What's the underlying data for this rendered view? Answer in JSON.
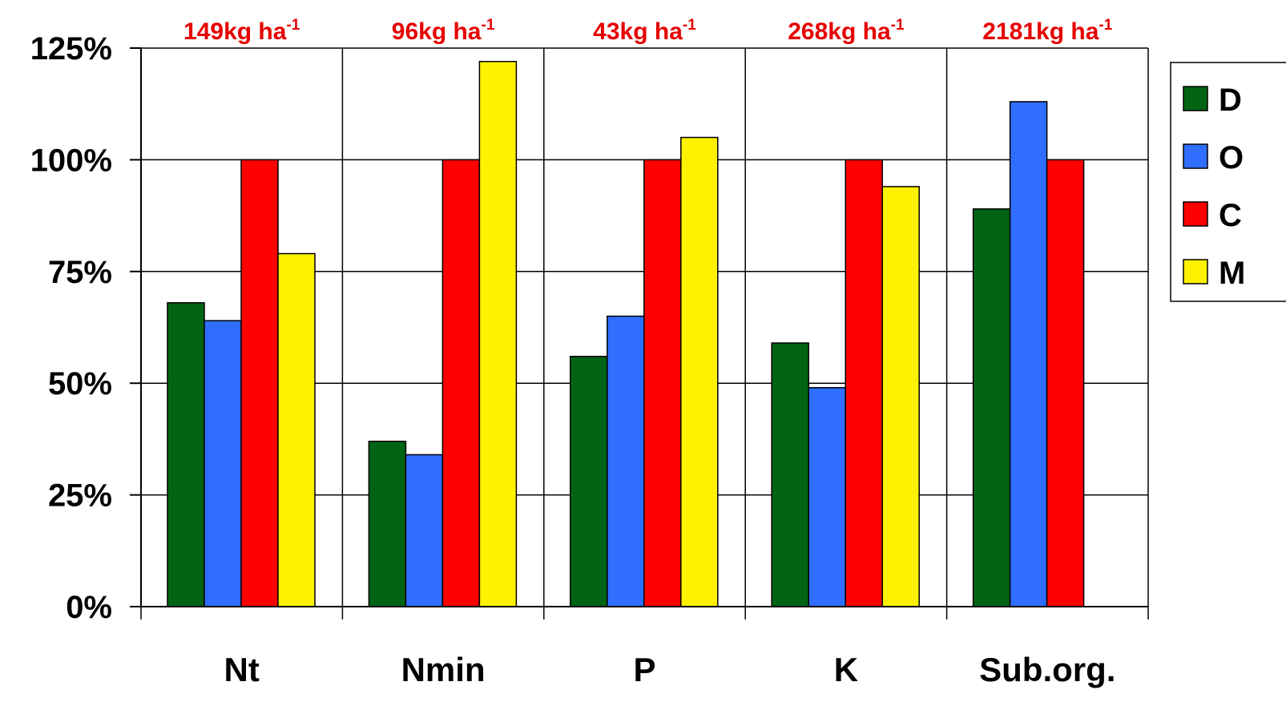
{
  "chart_data": {
    "type": "bar",
    "categories": [
      "Nt",
      "Nmin",
      "P",
      "K",
      "Sub.org."
    ],
    "annotations": [
      {
        "text": "149kg ha",
        "sup": "-1"
      },
      {
        "text": "96kg ha",
        "sup": "-1"
      },
      {
        "text": "43kg ha",
        "sup": "-1"
      },
      {
        "text": "268kg ha",
        "sup": "-1"
      },
      {
        "text": "2181kg ha",
        "sup": "-1"
      }
    ],
    "series": [
      {
        "name": "D",
        "color": "#006414",
        "values": [
          68,
          37,
          56,
          59,
          89
        ]
      },
      {
        "name": "O",
        "color": "#2f6eff",
        "values": [
          64,
          34,
          65,
          49,
          113
        ]
      },
      {
        "name": "C",
        "color": "#ff0000",
        "values": [
          100,
          100,
          100,
          100,
          100
        ]
      },
      {
        "name": "M",
        "color": "#fff200",
        "values": [
          79,
          122,
          105,
          94,
          null
        ]
      }
    ],
    "yticks": [
      "0%",
      "25%",
      "50%",
      "75%",
      "100%",
      "125%"
    ],
    "ylim": [
      0,
      125
    ],
    "grid": true,
    "legend": "right"
  }
}
